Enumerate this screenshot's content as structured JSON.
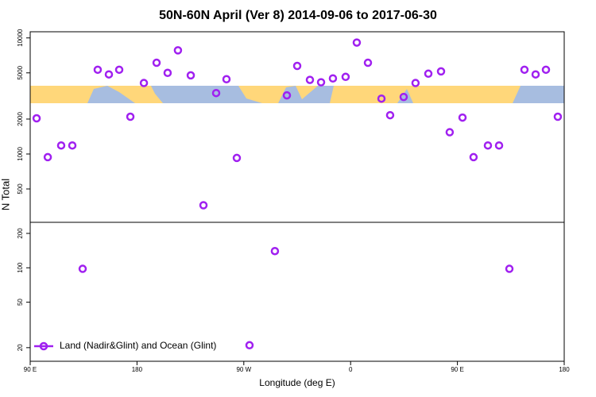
{
  "chart_data": [
    {
      "type": "scatter",
      "title": "50N-60N April (Ver 8)   2014-09-06 to 2017-06-30",
      "ylabel": "N Total",
      "log_y": true,
      "xlim": [
        90,
        540
      ],
      "ylim": [
        258,
        11300
      ],
      "yticks": [
        500,
        1000,
        2000,
        5000,
        10000
      ],
      "series": [
        {
          "color": "#a020f0",
          "x": [
            95.4,
            104.8,
            116.1,
            125.5,
            146.9,
            156.3,
            165.0,
            174.4,
            185.8,
            196.5,
            205.8,
            214.5,
            225.3,
            236.0,
            246.7,
            255.4,
            264.1,
            306.3,
            315.0,
            325.7,
            335.1,
            345.1,
            355.8,
            365.2,
            374.6,
            386.0,
            393.3,
            404.7,
            414.7,
            425.5,
            436.2,
            443.5,
            454.3,
            463.6,
            475.7,
            485.1,
            506.5,
            515.9,
            524.6,
            534.6
          ],
          "values": [
            2030,
            940,
            1185,
            1185,
            5320,
            4850,
            5320,
            2095,
            4090,
            6110,
            5000,
            7820,
            4760,
            362,
            3350,
            4410,
            925,
            3200,
            5740,
            4350,
            4150,
            4480,
            4620,
            9120,
            6110,
            3000,
            2160,
            3100,
            4090,
            4920,
            5150,
            1540,
            2060,
            940,
            1185,
            1185,
            5320,
            4850,
            5320,
            2095
          ]
        }
      ]
    },
    {
      "type": "scatter",
      "xlabel": "Longitude (deg E)",
      "log_y": true,
      "legend": "bottom-left",
      "xlim": [
        90,
        540
      ],
      "ylim": [
        15.2,
        250
      ],
      "xticks": [
        {
          "value": 90,
          "label": "90 E"
        },
        {
          "value": 180,
          "label": "180"
        },
        {
          "value": 270,
          "label": "90 W"
        },
        {
          "value": 360,
          "label": "0"
        },
        {
          "value": 450,
          "label": "90 E"
        },
        {
          "value": 540,
          "label": "180"
        }
      ],
      "yticks": [
        20,
        50,
        100,
        200
      ],
      "series": [
        {
          "name": "Land (Nadir&Glint) and Ocean (Glint)",
          "color": "#a020f0",
          "x": [
            134.2,
            274.8,
            296.2,
            493.8
          ],
          "values": [
            98,
            21,
            140,
            98
          ]
        }
      ]
    }
  ]
}
